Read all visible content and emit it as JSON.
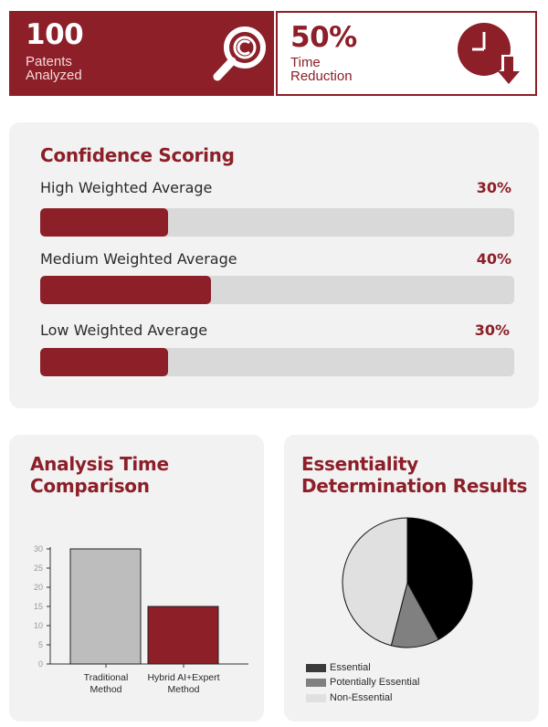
{
  "stats": {
    "patents": {
      "value": "100",
      "label_line1": "Patents",
      "label_line2": "Analyzed",
      "icon": "magnifier-copyright-icon"
    },
    "time": {
      "value": "50%",
      "label_line1": "Time",
      "label_line2": "Reduction",
      "icon": "clock-down-arrow-icon"
    }
  },
  "confidence": {
    "title": "Confidence Scoring",
    "rows": [
      {
        "label": "High Weighted Average",
        "percent_text": "30%",
        "percent": 30
      },
      {
        "label": "Medium Weighted Average",
        "percent_text": "40%",
        "percent": 40
      },
      {
        "label": "Low Weighted Average",
        "percent_text": "30%",
        "percent": 30
      }
    ]
  },
  "colors": {
    "brand": "#8c1f28",
    "track": "#d9d9d9",
    "panel": "#f2f2f2"
  },
  "chart_data": [
    {
      "type": "bar",
      "title_line1": "Analysis Time",
      "title_line2": "Comparison",
      "categories": [
        [
          "Traditional",
          "Method"
        ],
        [
          "Hybrid AI+Expert",
          "Method"
        ]
      ],
      "values": [
        30,
        15
      ],
      "colors": [
        "#bdbdbd",
        "#8c1f28"
      ],
      "ylim": [
        0,
        30
      ],
      "yticks": [
        "0",
        "5",
        "10",
        "15",
        "20",
        "25",
        "30"
      ],
      "grid": false
    },
    {
      "type": "pie",
      "title_line1": "Essentiality",
      "title_line2": "Determination Results",
      "labels": [
        "Essential",
        "Potentially Essential",
        "Non-Essential"
      ],
      "values": [
        42,
        12,
        46
      ],
      "colors": [
        "#000000",
        "#808080",
        "#e0e0e0"
      ],
      "legend_position": "bottom-left"
    }
  ]
}
